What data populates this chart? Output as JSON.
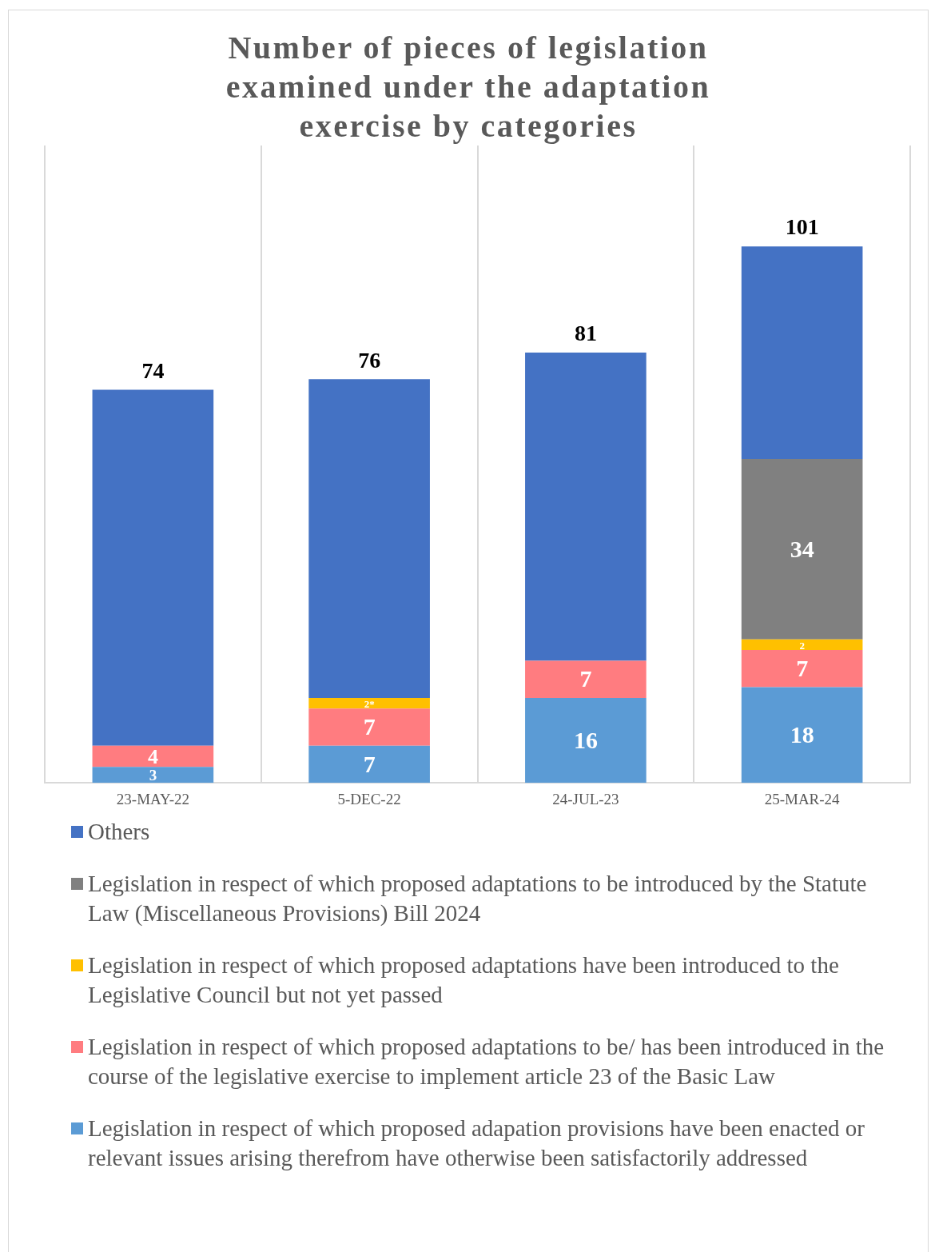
{
  "chart_data": {
    "type": "bar",
    "title": "Number of pieces of legislation examined under the adaptation exercise by categories",
    "categories": [
      "23-MAY-22",
      "5-DEC-22",
      "24-JUL-23",
      "25-MAR-24"
    ],
    "stacked": true,
    "grid": "x",
    "legend": "bottom",
    "tick_labels": "x",
    "series": [
      {
        "name": "Legislation in respect of which proposed adapation provisions have been enacted or relevant issues arising therefrom have otherwise been satisfactorily addressed",
        "color": "#5b9bd5",
        "values": [
          3,
          7,
          16,
          18
        ],
        "value_labels": [
          "3",
          "7",
          "16",
          "18"
        ]
      },
      {
        "name": "Legislation in respect of which proposed adaptations to be/ has been introduced in the course of the legislative exercise to implement article 23 of the Basic Law",
        "color": "#ff7c80",
        "values": [
          4,
          7,
          7,
          7
        ],
        "value_labels": [
          "4",
          "7",
          "7",
          "7"
        ]
      },
      {
        "name": "Legislation in respect of which proposed adaptations have been introduced to the Legislative Council but not yet passed",
        "color": "#ffc000",
        "values": [
          null,
          2,
          null,
          2
        ],
        "value_labels": [
          null,
          "2*",
          null,
          "2"
        ]
      },
      {
        "name": "Legislation in respect of which proposed adaptations to be introduced by the Statute Law (Miscellaneous Provisions) Bill 2024",
        "color": "#808080",
        "values": [
          null,
          null,
          null,
          34
        ],
        "value_labels": [
          null,
          null,
          null,
          "34"
        ]
      },
      {
        "name": "Others",
        "color": "#4472c4",
        "values": [
          67,
          60,
          58,
          40
        ],
        "value_labels": [
          null,
          null,
          null,
          null
        ]
      }
    ],
    "totals": [
      "74",
      "76",
      "81",
      "101"
    ]
  }
}
